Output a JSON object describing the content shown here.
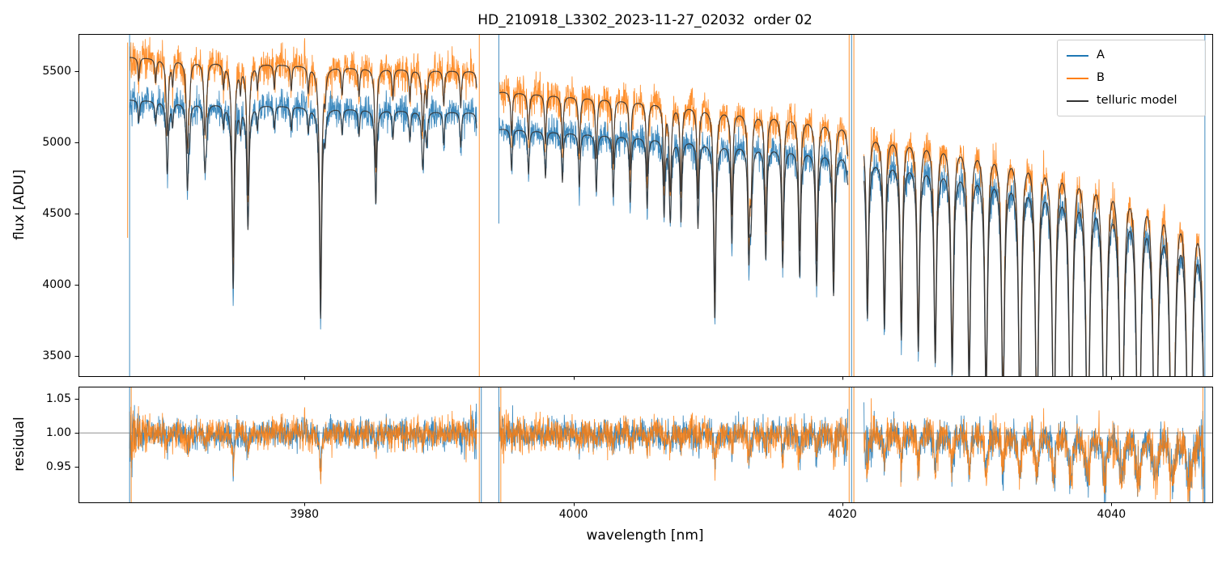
{
  "figure": {
    "background": "#ffffff",
    "frame_color": "#000000"
  },
  "chart_data": [
    {
      "type": "line",
      "panel": "flux",
      "title": "HD_210918_L3302_2023-11-27_02032  order 02",
      "xlabel": "",
      "ylabel": "flux [ADU]",
      "xlim": [
        3963.2,
        4047.5
      ],
      "ylim": [
        3360,
        5760
      ],
      "xticks": [
        3980,
        4000,
        4020,
        4040
      ],
      "xtick_labels": [
        "3980",
        "4000",
        "4020",
        "4040"
      ],
      "x_tick_labels_visible": false,
      "yticks": [
        3500,
        4000,
        4500,
        5000,
        5500
      ],
      "ytick_labels": [
        "3500",
        "4000",
        "4500",
        "5000",
        "5500"
      ],
      "grid": false,
      "legend": {
        "position": "upper right",
        "entries": [
          {
            "label": "A",
            "color": "#1f77b4"
          },
          {
            "label": "B",
            "color": "#ff7f0e"
          },
          {
            "label": "telluric model",
            "color": "#333333"
          }
        ]
      },
      "segments_nm": [
        [
          3967.0,
          3992.8
        ],
        [
          3994.5,
          4020.4
        ],
        [
          4021.6,
          4046.9
        ]
      ],
      "series": [
        {
          "name": "A",
          "role": "observed",
          "color": "#1f77b4",
          "noise_sigma_adu": 55,
          "continuum_anchors": [
            [
              3963,
              5320
            ],
            [
              3967,
              5300
            ],
            [
              3975,
              5270
            ],
            [
              3985,
              5230
            ],
            [
              3993,
              5210
            ],
            [
              3994.5,
              5100
            ],
            [
              4005,
              5040
            ],
            [
              4015,
              4970
            ],
            [
              4020.4,
              4930
            ],
            [
              4021.6,
              4900
            ],
            [
              4035,
              4800
            ],
            [
              4043,
              4750
            ],
            [
              4048,
              4720
            ]
          ]
        },
        {
          "name": "B",
          "role": "observed",
          "color": "#ff7f0e",
          "noise_sigma_adu": 62,
          "continuum_anchors": [
            [
              3963,
              5620
            ],
            [
              3967,
              5600
            ],
            [
              3975,
              5560
            ],
            [
              3985,
              5520
            ],
            [
              3993,
              5500
            ],
            [
              3994.5,
              5360
            ],
            [
              4005,
              5290
            ],
            [
              4015,
              5200
            ],
            [
              4020.4,
              5140
            ],
            [
              4021.6,
              5080
            ],
            [
              4035,
              4980
            ],
            [
              4043,
              4920
            ],
            [
              4048,
              4890
            ]
          ]
        },
        {
          "name": "telluric model",
          "role": "model",
          "color": "#333333"
        }
      ],
      "telluric": {
        "comb_start_nm": 3963.9,
        "comb_spacing_nm": 1.26,
        "depth_tau": {
          "base": 0.03,
          "amp": 0.9,
          "x0": 3963,
          "scale": 87,
          "power": 3.5
        },
        "width_nm": {
          "base": 0.06,
          "amp": 0.14
        },
        "extra_lines": [
          [
            3969.8,
            0.1
          ],
          [
            3971.3,
            0.12
          ],
          [
            3972.6,
            0.09
          ],
          [
            3974.7,
            0.28
          ],
          [
            3975.8,
            0.18
          ],
          [
            3981.2,
            0.33
          ],
          [
            3985.3,
            0.1
          ],
          [
            3988.8,
            0.08
          ],
          [
            4007.2,
            0.12
          ],
          [
            4010.5,
            0.15
          ],
          [
            4013.2,
            0.1
          ]
        ]
      },
      "edge_spikes": [
        {
          "x": 3967.0,
          "series": "A"
        },
        {
          "x": 3966.85,
          "series": "B",
          "v0": 5700,
          "v1": 4330
        },
        {
          "x": 3993.0,
          "series": "B"
        },
        {
          "x": 3994.45,
          "series": "A",
          "v0": 5760,
          "v1": 4430
        },
        {
          "x": 4020.5,
          "series": "B"
        },
        {
          "x": 4020.68,
          "series": "A"
        },
        {
          "x": 4020.85,
          "series": "B"
        },
        {
          "x": 4046.95,
          "series": "A"
        }
      ]
    },
    {
      "type": "line",
      "panel": "residual",
      "title": "",
      "xlabel": "wavelength [nm]",
      "ylabel": "residual",
      "xlim": [
        3963.2,
        4047.5
      ],
      "ylim": [
        0.898,
        1.068
      ],
      "xticks": [
        3980,
        4000,
        4020,
        4040
      ],
      "xtick_labels": [
        "3980",
        "4000",
        "4020",
        "4040"
      ],
      "x_tick_labels_visible": true,
      "yticks": [
        0.95,
        1.0,
        1.05
      ],
      "ytick_labels": [
        "0.95",
        "1.00",
        "1.05"
      ],
      "grid": false,
      "hline_y": 1.0,
      "hline_color": "#808080",
      "series": [
        {
          "name": "A",
          "color": "#1f77b4"
        },
        {
          "name": "B",
          "color": "#ff7f0e"
        }
      ],
      "systematic_core_dip": 0.15,
      "noise_floor_frac": 0.45,
      "residual_edge_burst": {
        "amp_start": 1.3,
        "amp_end": 1.0,
        "scale_nm": 0.5
      },
      "edge_spikes": [
        {
          "x": 3967.0,
          "series": "A"
        },
        {
          "x": 3967.12,
          "series": "B"
        },
        {
          "x": 3993.0,
          "series": "B"
        },
        {
          "x": 3993.15,
          "series": "A"
        },
        {
          "x": 3994.45,
          "series": "A"
        },
        {
          "x": 3994.6,
          "series": "B"
        },
        {
          "x": 4020.5,
          "series": "B"
        },
        {
          "x": 4020.68,
          "series": "A"
        },
        {
          "x": 4020.85,
          "series": "B"
        },
        {
          "x": 4046.8,
          "series": "B"
        },
        {
          "x": 4046.95,
          "series": "A"
        }
      ]
    }
  ]
}
